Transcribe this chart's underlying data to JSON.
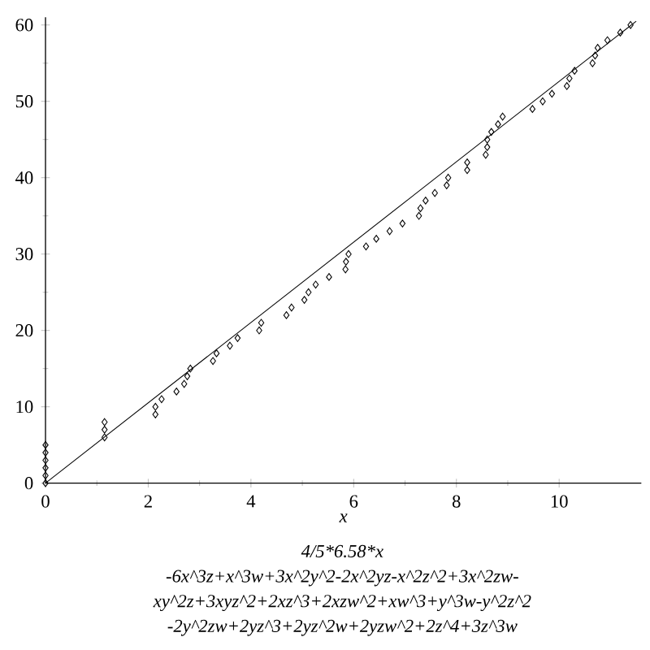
{
  "chart_data": {
    "type": "scatter",
    "xlabel": "x",
    "annotations": [
      "4/5*6.58*x",
      "-6x^3z+x^3w+3x^2y^2-2x^2yz-x^2z^2+3x^2zw-",
      "xy^2z+3xyz^2+2xz^3+2xzw^2+xw^3+y^3w-y^2z^2",
      "-2y^2zw+2yz^3+2yz^2w+2yzw^2+2z^4+3z^3w"
    ],
    "xlim": [
      0,
      11.6
    ],
    "ylim": [
      0,
      61
    ],
    "xticks": [
      0,
      2,
      4,
      6,
      8,
      10
    ],
    "yticks": [
      0,
      10,
      20,
      30,
      40,
      50,
      60
    ],
    "series": [
      {
        "color": "#000000",
        "marker": "diamond",
        "x": [
          0,
          0,
          0,
          0,
          0,
          0,
          1.15,
          1.15,
          1.15,
          2.14,
          2.14,
          2.26,
          2.55,
          2.7,
          2.76,
          2.82,
          3.26,
          3.33,
          3.59,
          3.74,
          4.16,
          4.2,
          4.69,
          4.79,
          5.04,
          5.12,
          5.26,
          5.52,
          5.84,
          5.85,
          5.9,
          6.24,
          6.44,
          6.7,
          6.95,
          7.27,
          7.3,
          7.4,
          7.58,
          7.81,
          7.84,
          8.21,
          8.21,
          8.57,
          8.6,
          8.6,
          8.68,
          8.81,
          8.9,
          9.48,
          9.68,
          9.86,
          10.15,
          10.2,
          10.3,
          10.65,
          10.7,
          10.75,
          10.94,
          11.19,
          11.39
        ],
        "values": [
          0,
          1,
          2,
          3,
          4,
          5,
          6,
          7,
          8,
          9,
          10,
          11,
          12,
          13,
          14,
          15,
          16,
          17,
          18,
          19,
          20,
          21,
          22,
          23,
          24,
          25,
          26,
          27,
          28,
          29,
          30,
          31,
          32,
          33,
          34,
          35,
          36,
          37,
          38,
          39,
          40,
          41,
          42,
          43,
          44,
          45,
          46,
          47,
          48,
          49,
          50,
          51,
          52,
          53,
          54,
          55,
          56,
          57,
          58,
          59,
          60
        ]
      },
      {
        "type": "line",
        "color": "#000000",
        "line_style": "solid",
        "x": [
          0,
          11.5
        ],
        "values": [
          0,
          60.5
        ]
      }
    ]
  }
}
